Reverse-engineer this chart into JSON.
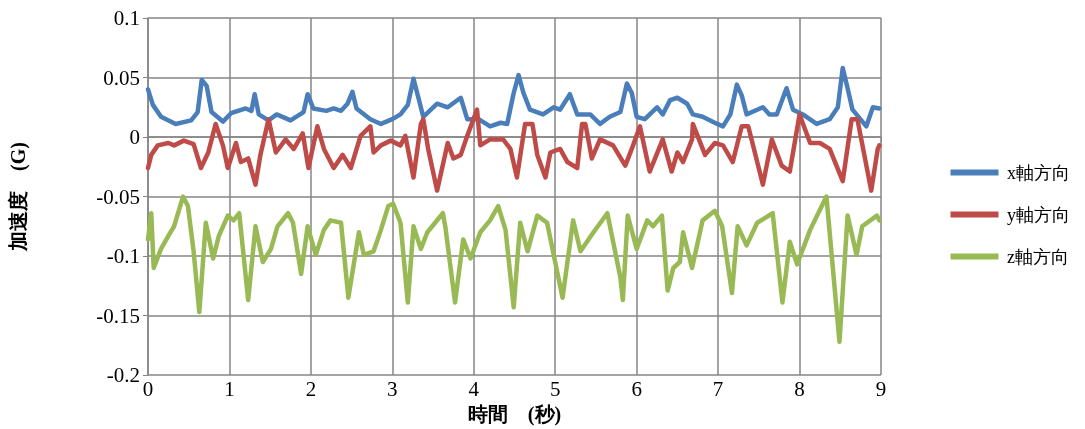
{
  "chart_data": {
    "type": "line",
    "xlabel": "時間　(秒)",
    "ylabel": "加速度　(G)",
    "xlim": [
      0,
      9
    ],
    "xticks": [
      0,
      1,
      2,
      3,
      4,
      5,
      6,
      7,
      8,
      9
    ],
    "ylim": [
      -0.2,
      0.1
    ],
    "yticks": [
      -0.2,
      -0.15,
      -0.1,
      -0.05,
      0,
      0.05,
      0.1
    ],
    "grid": true,
    "legend": "right",
    "marker": "none",
    "line_style": "solid",
    "series": [
      {
        "name": "x軸方向",
        "color": "#4a7ebb",
        "x": [
          0,
          0.06,
          0.16,
          0.34,
          0.53,
          0.61,
          0.66,
          0.72,
          0.78,
          0.92,
          1.02,
          1.2,
          1.27,
          1.31,
          1.36,
          1.48,
          1.58,
          1.75,
          1.91,
          1.96,
          2.03,
          2.19,
          2.28,
          2.37,
          2.45,
          2.51,
          2.56,
          2.73,
          2.86,
          3,
          3.1,
          3.19,
          3.26,
          3.32,
          3.38,
          3.55,
          3.68,
          3.84,
          3.92,
          4.06,
          4.2,
          4.33,
          4.41,
          4.49,
          4.55,
          4.61,
          4.69,
          4.85,
          4.98,
          5.06,
          5.18,
          5.27,
          5.43,
          5.55,
          5.67,
          5.8,
          5.88,
          5.94,
          6,
          6.1,
          6.25,
          6.32,
          6.41,
          6.5,
          6.62,
          6.69,
          6.81,
          6.99,
          7.06,
          7.15,
          7.23,
          7.29,
          7.35,
          7.55,
          7.63,
          7.72,
          7.84,
          7.92,
          8.04,
          8.21,
          8.37,
          8.47,
          8.53,
          8.59,
          8.65,
          8.82,
          8.9,
          8.98
        ],
        "values": [
          0.04,
          0.027,
          0.017,
          0.011,
          0.014,
          0.021,
          0.048,
          0.043,
          0.021,
          0.013,
          0.02,
          0.024,
          0.022,
          0.036,
          0.019,
          0.014,
          0.019,
          0.014,
          0.021,
          0.036,
          0.024,
          0.022,
          0.024,
          0.022,
          0.028,
          0.038,
          0.024,
          0.015,
          0.011,
          0.015,
          0.019,
          0.027,
          0.049,
          0.033,
          0.017,
          0.028,
          0.025,
          0.033,
          0.015,
          0.015,
          0.009,
          0.012,
          0.011,
          0.037,
          0.052,
          0.037,
          0.023,
          0.019,
          0.025,
          0.023,
          0.036,
          0.019,
          0.019,
          0.011,
          0.017,
          0.021,
          0.045,
          0.037,
          0.017,
          0.015,
          0.025,
          0.019,
          0.031,
          0.033,
          0.028,
          0.019,
          0.017,
          0.011,
          0.009,
          0.019,
          0.044,
          0.035,
          0.019,
          0.025,
          0.019,
          0.019,
          0.041,
          0.023,
          0.019,
          0.011,
          0.015,
          0.025,
          0.058,
          0.041,
          0.023,
          0.009,
          0.025,
          0.024
        ]
      },
      {
        "name": "y軸方向",
        "color": "#be4b48",
        "x": [
          0,
          0.04,
          0.12,
          0.25,
          0.32,
          0.44,
          0.56,
          0.65,
          0.74,
          0.83,
          0.92,
          0.98,
          1.08,
          1.14,
          1.23,
          1.32,
          1.38,
          1.48,
          1.57,
          1.69,
          1.79,
          1.9,
          1.97,
          2.08,
          2.16,
          2.28,
          2.39,
          2.49,
          2.61,
          2.73,
          2.77,
          2.86,
          2.98,
          3.1,
          3.16,
          3.26,
          3.35,
          3.38,
          3.44,
          3.55,
          3.68,
          3.75,
          3.84,
          3.92,
          4.04,
          4.08,
          4.2,
          4.36,
          4.45,
          4.53,
          4.63,
          4.72,
          4.78,
          4.88,
          4.94,
          5.06,
          5.15,
          5.27,
          5.33,
          5.37,
          5.45,
          5.55,
          5.71,
          5.86,
          5.94,
          6.04,
          6.16,
          6.32,
          6.43,
          6.5,
          6.57,
          6.68,
          6.69,
          6.84,
          6.96,
          7.06,
          7.18,
          7.29,
          7.37,
          7.55,
          7.66,
          7.78,
          7.88,
          8,
          8.13,
          8.25,
          8.37,
          8.53,
          8.64,
          8.71,
          8.88,
          8.96,
          8.98
        ],
        "values": [
          -0.026,
          -0.015,
          -0.007,
          -0.005,
          -0.007,
          -0.003,
          -0.006,
          -0.026,
          -0.013,
          0.011,
          -0.007,
          -0.026,
          -0.005,
          -0.021,
          -0.018,
          -0.04,
          -0.015,
          0.015,
          -0.013,
          -0.002,
          -0.01,
          0.003,
          -0.026,
          0.009,
          -0.01,
          -0.026,
          -0.015,
          -0.026,
          0.001,
          0.009,
          -0.013,
          -0.007,
          -0.003,
          -0.007,
          0.001,
          -0.034,
          0.011,
          0.015,
          -0.01,
          -0.045,
          -0.005,
          -0.018,
          -0.015,
          0.001,
          0.023,
          -0.007,
          -0.002,
          -0.002,
          -0.01,
          -0.034,
          0.011,
          0.011,
          -0.015,
          -0.034,
          -0.013,
          -0.01,
          -0.021,
          -0.026,
          0.011,
          0.011,
          -0.018,
          -0.002,
          -0.007,
          -0.024,
          -0.01,
          0.009,
          -0.029,
          -0.002,
          -0.029,
          -0.013,
          -0.021,
          -0.002,
          0.011,
          -0.015,
          -0.005,
          -0.007,
          -0.021,
          0.009,
          0.009,
          -0.04,
          -0.002,
          -0.024,
          -0.029,
          0.019,
          -0.005,
          -0.005,
          -0.01,
          -0.037,
          0.015,
          0.015,
          -0.045,
          -0.01,
          -0.007
        ]
      },
      {
        "name": "z軸方向",
        "color": "#98b954",
        "x": [
          0,
          0.04,
          0.07,
          0.16,
          0.25,
          0.32,
          0.43,
          0.49,
          0.56,
          0.63,
          0.71,
          0.8,
          0.87,
          0.98,
          1.05,
          1.12,
          1.23,
          1.32,
          1.41,
          1.51,
          1.59,
          1.72,
          1.78,
          1.88,
          1.96,
          2.06,
          2.16,
          2.24,
          2.37,
          2.46,
          2.59,
          2.65,
          2.77,
          2.86,
          2.95,
          3.01,
          3.1,
          3.19,
          3.26,
          3.35,
          3.43,
          3.62,
          3.65,
          3.77,
          3.87,
          3.96,
          4.08,
          4.2,
          4.3,
          4.39,
          4.49,
          4.57,
          4.66,
          4.78,
          4.9,
          5.09,
          5.22,
          5.31,
          5.47,
          5.64,
          5.8,
          5.83,
          5.89,
          6,
          6.13,
          6.2,
          6.31,
          6.38,
          6.45,
          6.53,
          6.57,
          6.68,
          6.81,
          6.96,
          7.05,
          7.17,
          7.24,
          7.35,
          7.48,
          7.67,
          7.79,
          7.88,
          7.97,
          8.13,
          8.33,
          8.49,
          8.59,
          8.7,
          8.77,
          8.95,
          8.98
        ],
        "values": [
          -0.086,
          -0.064,
          -0.11,
          -0.094,
          -0.083,
          -0.075,
          -0.05,
          -0.058,
          -0.096,
          -0.147,
          -0.072,
          -0.102,
          -0.083,
          -0.066,
          -0.07,
          -0.064,
          -0.137,
          -0.075,
          -0.105,
          -0.094,
          -0.075,
          -0.064,
          -0.072,
          -0.115,
          -0.075,
          -0.099,
          -0.078,
          -0.07,
          -0.072,
          -0.135,
          -0.08,
          -0.099,
          -0.096,
          -0.078,
          -0.058,
          -0.056,
          -0.072,
          -0.139,
          -0.075,
          -0.094,
          -0.08,
          -0.064,
          -0.075,
          -0.139,
          -0.086,
          -0.102,
          -0.08,
          -0.07,
          -0.058,
          -0.078,
          -0.143,
          -0.072,
          -0.096,
          -0.066,
          -0.072,
          -0.135,
          -0.07,
          -0.096,
          -0.08,
          -0.064,
          -0.118,
          -0.137,
          -0.066,
          -0.094,
          -0.07,
          -0.075,
          -0.066,
          -0.129,
          -0.11,
          -0.105,
          -0.08,
          -0.11,
          -0.07,
          -0.062,
          -0.075,
          -0.131,
          -0.075,
          -0.091,
          -0.072,
          -0.064,
          -0.139,
          -0.088,
          -0.107,
          -0.078,
          -0.05,
          -0.172,
          -0.066,
          -0.099,
          -0.075,
          -0.066,
          -0.07
        ]
      }
    ]
  }
}
